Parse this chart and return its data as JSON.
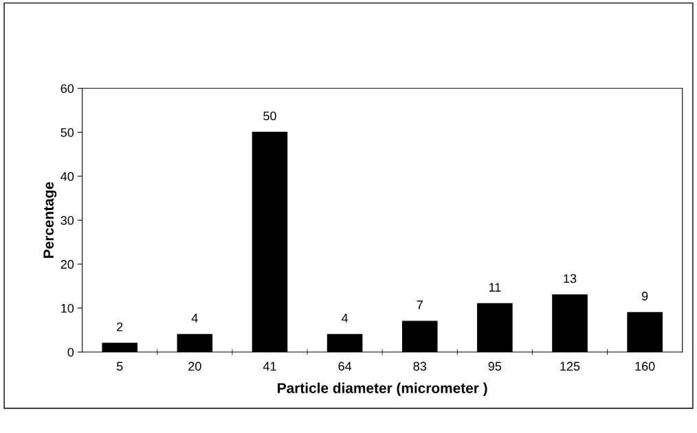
{
  "chart_data": {
    "type": "bar",
    "xlabel": "Particle diameter (micrometer )",
    "ylabel": "Percentage",
    "categories": [
      "5",
      "20",
      "41",
      "64",
      "83",
      "95",
      "125",
      "160"
    ],
    "values": [
      2,
      4,
      50,
      4,
      7,
      11,
      13,
      9
    ],
    "color": "#000000",
    "ylim": [
      0,
      60
    ],
    "yticks": [
      0,
      10,
      20,
      30,
      40,
      50,
      60
    ],
    "grid": false,
    "legend": false,
    "data_labels": true
  }
}
